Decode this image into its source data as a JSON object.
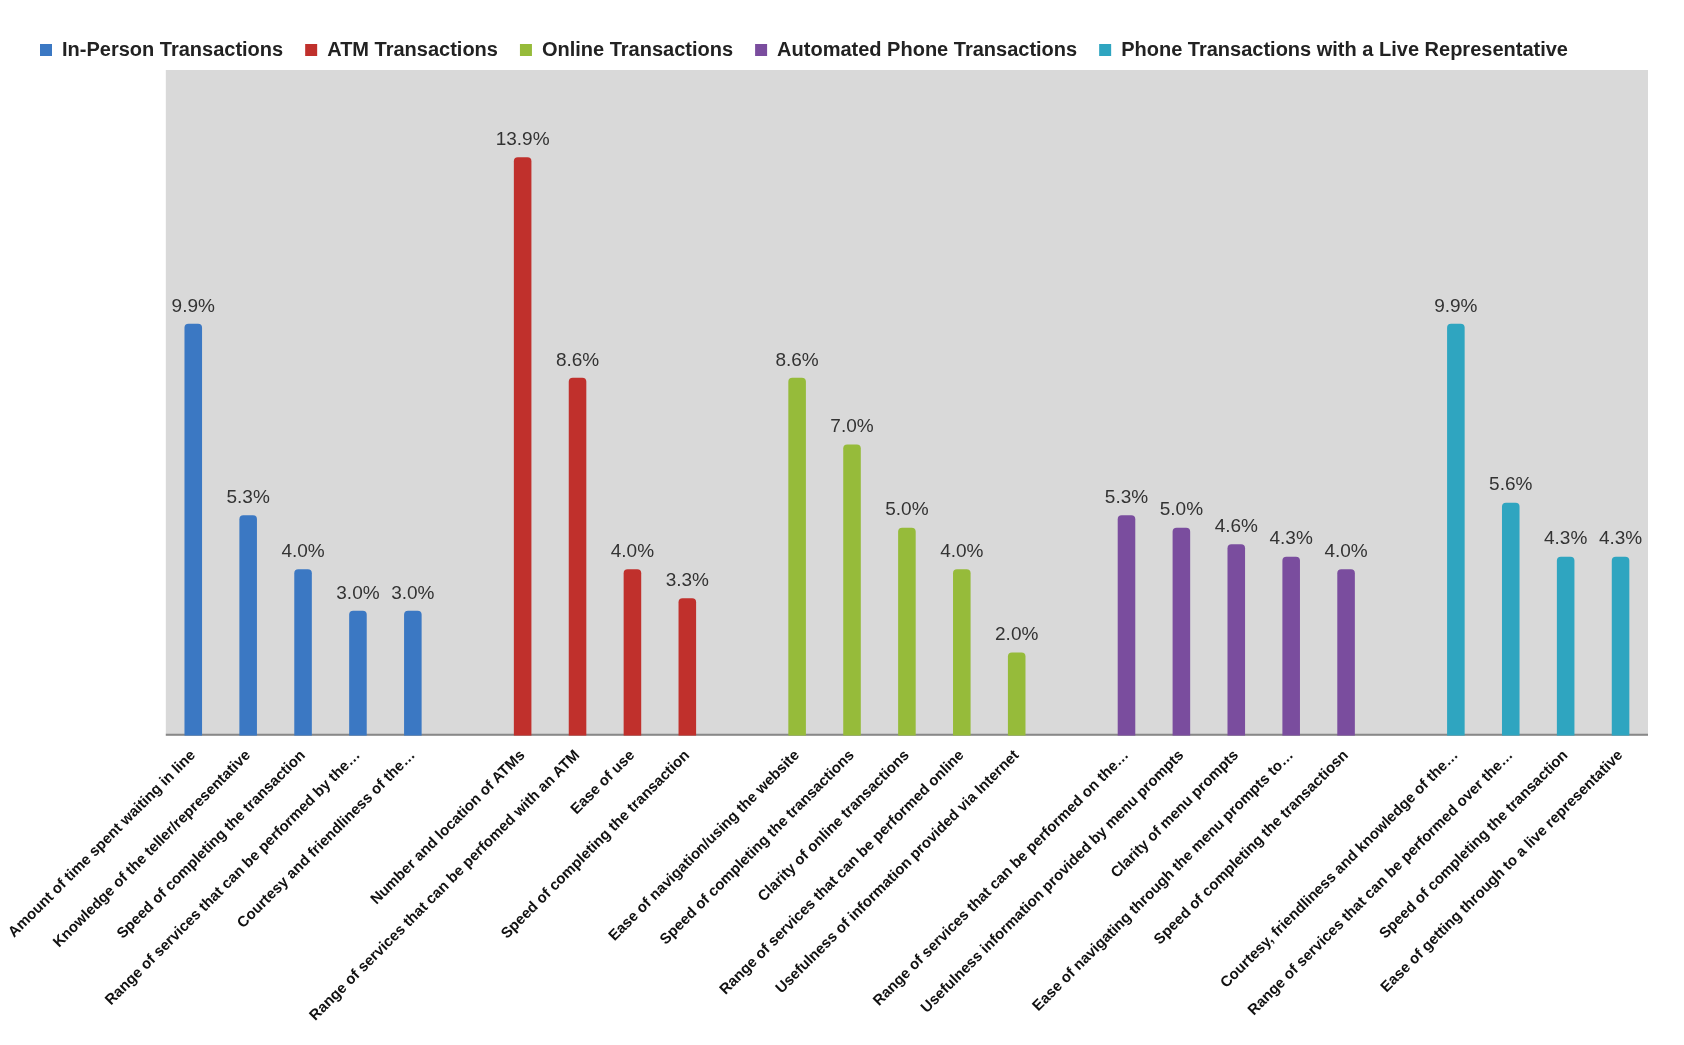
{
  "chart_data": {
    "type": "bar",
    "categories": [
      "Amount of time spent waiting in line",
      "Knowledge of the teller/representative",
      "Speed of completing the transaction",
      "Range of services that can be performed by the…",
      "Courtesy and friendliness of the…",
      null,
      "Number and location of ATMs",
      "Range of services that can be perfomed with an ATM",
      "Ease of use",
      "Speed of completing the transaction",
      null,
      "Ease of navigation/using the website",
      "Speed of completing the transactions",
      "Clarity of online transactions",
      "Range of services that can be performed online",
      "Usefulness of information provided via Internet",
      null,
      "Range of services that can be performed on the…",
      "Usefulness information provided by menu prompts",
      "Clarity of menu prompts",
      "Ease of navigating through the menu prompts to…",
      "Speed of completing the transactiosn",
      null,
      "Courtesy, friendliness and knowledge of the…",
      "Range of services that can be performed over the…",
      "Speed of completing the transaction",
      "Ease of getting through to a live representative"
    ],
    "series": [
      {
        "name": "In-Person Transactions",
        "color": "#3b78c3",
        "values": [
          9.9,
          5.3,
          4.0,
          3.0,
          3.0,
          null,
          null,
          null,
          null,
          null,
          null,
          null,
          null,
          null,
          null,
          null,
          null,
          null,
          null,
          null,
          null,
          null,
          null,
          null,
          null,
          null,
          null
        ],
        "value_labels": [
          "9.9%",
          "5.3%",
          "4.0%",
          "3.0%",
          "3.0%",
          null,
          null,
          null,
          null,
          null,
          null,
          null,
          null,
          null,
          null,
          null,
          null,
          null,
          null,
          null,
          null,
          null,
          null,
          null,
          null,
          null,
          null
        ]
      },
      {
        "name": "ATM Transactions",
        "color": "#c0302c",
        "values": [
          null,
          null,
          null,
          null,
          null,
          null,
          13.9,
          8.6,
          4.0,
          3.3,
          null,
          null,
          null,
          null,
          null,
          null,
          null,
          null,
          null,
          null,
          null,
          null,
          null,
          null,
          null,
          null,
          null
        ],
        "value_labels": [
          null,
          null,
          null,
          null,
          null,
          null,
          "13.9%",
          "8.6%",
          "4.0%",
          "3.3%",
          null,
          null,
          null,
          null,
          null,
          null,
          null,
          null,
          null,
          null,
          null,
          null,
          null,
          null,
          null,
          null,
          null
        ]
      },
      {
        "name": "Online Transactions",
        "color": "#96bb3a",
        "values": [
          null,
          null,
          null,
          null,
          null,
          null,
          null,
          null,
          null,
          null,
          null,
          8.6,
          7.0,
          5.0,
          4.0,
          2.0,
          null,
          null,
          null,
          null,
          null,
          null,
          null,
          null,
          null,
          null,
          null
        ],
        "value_labels": [
          null,
          null,
          null,
          null,
          null,
          null,
          null,
          null,
          null,
          null,
          null,
          "8.6%",
          "7.0%",
          "5.0%",
          "4.0%",
          "2.0%",
          null,
          null,
          null,
          null,
          null,
          null,
          null,
          null,
          null,
          null,
          null
        ]
      },
      {
        "name": "Automated Phone Transactions",
        "color": "#7a4d9e",
        "values": [
          null,
          null,
          null,
          null,
          null,
          null,
          null,
          null,
          null,
          null,
          null,
          null,
          null,
          null,
          null,
          null,
          null,
          5.3,
          5.0,
          4.6,
          4.3,
          4.0,
          null,
          null,
          null,
          null,
          null
        ],
        "value_labels": [
          null,
          null,
          null,
          null,
          null,
          null,
          null,
          null,
          null,
          null,
          null,
          null,
          null,
          null,
          null,
          null,
          null,
          "5.3%",
          "5.0%",
          "4.6%",
          "4.3%",
          "4.0%",
          null,
          null,
          null,
          null,
          null
        ]
      },
      {
        "name": "Phone Transactions with a Live Representative",
        "color": "#2fa5c0",
        "values": [
          null,
          null,
          null,
          null,
          null,
          null,
          null,
          null,
          null,
          null,
          null,
          null,
          null,
          null,
          null,
          null,
          null,
          null,
          null,
          null,
          null,
          null,
          null,
          9.9,
          5.6,
          4.3,
          4.3
        ],
        "value_labels": [
          null,
          null,
          null,
          null,
          null,
          null,
          null,
          null,
          null,
          null,
          null,
          null,
          null,
          null,
          null,
          null,
          null,
          null,
          null,
          null,
          null,
          null,
          null,
          "9.9%",
          "5.6%",
          "4.3%",
          "4.3%"
        ]
      }
    ],
    "legend": "top",
    "grid": false
  }
}
